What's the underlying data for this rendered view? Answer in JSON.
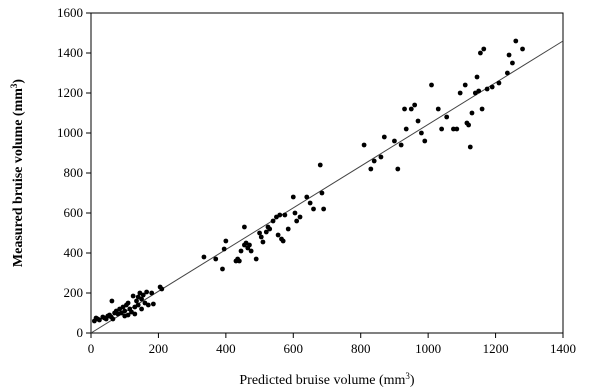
{
  "chart_data": {
    "type": "scatter",
    "title": "",
    "xlabel": "Predicted bruise volume (mm",
    "xlabel_sup": "3",
    "xlabel_tail": ")",
    "ylabel": "Measured bruise volume (mm",
    "ylabel_sup": "3",
    "ylabel_tail": ")",
    "xlim": [
      0,
      1400
    ],
    "ylim": [
      0,
      1600
    ],
    "xticks": [
      "0",
      "200",
      "400",
      "600",
      "800",
      "1000",
      "1200",
      "1400"
    ],
    "yticks": [
      "0",
      "200",
      "400",
      "600",
      "800",
      "1000",
      "1200",
      "1400",
      "1600"
    ],
    "grid": false,
    "legend": "none",
    "point_color": "#000000",
    "line_color": "#444444",
    "fit_line": {
      "x": [
        0,
        1400
      ],
      "y": [
        0,
        1460
      ]
    },
    "points": [
      [
        10,
        60
      ],
      [
        15,
        75
      ],
      [
        20,
        70
      ],
      [
        25,
        65
      ],
      [
        35,
        80
      ],
      [
        40,
        75
      ],
      [
        45,
        70
      ],
      [
        50,
        85
      ],
      [
        55,
        90
      ],
      [
        60,
        80
      ],
      [
        62,
        160
      ],
      [
        65,
        70
      ],
      [
        70,
        100
      ],
      [
        75,
        110
      ],
      [
        80,
        95
      ],
      [
        85,
        120
      ],
      [
        90,
        100
      ],
      [
        95,
        130
      ],
      [
        100,
        110
      ],
      [
        100,
        85
      ],
      [
        105,
        140
      ],
      [
        110,
        150
      ],
      [
        110,
        90
      ],
      [
        115,
        120
      ],
      [
        120,
        105
      ],
      [
        125,
        185
      ],
      [
        130,
        130
      ],
      [
        130,
        95
      ],
      [
        135,
        160
      ],
      [
        140,
        180
      ],
      [
        140,
        140
      ],
      [
        145,
        200
      ],
      [
        150,
        170
      ],
      [
        150,
        120
      ],
      [
        155,
        190
      ],
      [
        160,
        150
      ],
      [
        165,
        205
      ],
      [
        170,
        140
      ],
      [
        180,
        200
      ],
      [
        185,
        145
      ],
      [
        205,
        230
      ],
      [
        210,
        220
      ],
      [
        335,
        380
      ],
      [
        370,
        370
      ],
      [
        390,
        320
      ],
      [
        395,
        420
      ],
      [
        400,
        460
      ],
      [
        430,
        360
      ],
      [
        435,
        370
      ],
      [
        440,
        360
      ],
      [
        445,
        410
      ],
      [
        455,
        530
      ],
      [
        455,
        440
      ],
      [
        460,
        450
      ],
      [
        465,
        425
      ],
      [
        470,
        440
      ],
      [
        475,
        410
      ],
      [
        490,
        370
      ],
      [
        500,
        500
      ],
      [
        505,
        480
      ],
      [
        510,
        455
      ],
      [
        520,
        505
      ],
      [
        525,
        530
      ],
      [
        530,
        520
      ],
      [
        540,
        560
      ],
      [
        550,
        580
      ],
      [
        555,
        490
      ],
      [
        560,
        590
      ],
      [
        565,
        470
      ],
      [
        570,
        460
      ],
      [
        575,
        590
      ],
      [
        585,
        520
      ],
      [
        600,
        680
      ],
      [
        605,
        600
      ],
      [
        610,
        560
      ],
      [
        620,
        580
      ],
      [
        640,
        680
      ],
      [
        650,
        650
      ],
      [
        660,
        620
      ],
      [
        680,
        840
      ],
      [
        685,
        700
      ],
      [
        690,
        620
      ],
      [
        810,
        940
      ],
      [
        830,
        820
      ],
      [
        840,
        860
      ],
      [
        860,
        880
      ],
      [
        870,
        980
      ],
      [
        900,
        960
      ],
      [
        910,
        820
      ],
      [
        920,
        940
      ],
      [
        930,
        1120
      ],
      [
        935,
        1020
      ],
      [
        950,
        1120
      ],
      [
        960,
        1140
      ],
      [
        970,
        1060
      ],
      [
        980,
        1000
      ],
      [
        990,
        960
      ],
      [
        1010,
        1240
      ],
      [
        1030,
        1120
      ],
      [
        1040,
        1020
      ],
      [
        1055,
        1080
      ],
      [
        1075,
        1020
      ],
      [
        1085,
        1020
      ],
      [
        1095,
        1200
      ],
      [
        1110,
        1240
      ],
      [
        1115,
        1050
      ],
      [
        1120,
        1040
      ],
      [
        1125,
        930
      ],
      [
        1130,
        1100
      ],
      [
        1140,
        1200
      ],
      [
        1145,
        1280
      ],
      [
        1150,
        1210
      ],
      [
        1155,
        1400
      ],
      [
        1160,
        1120
      ],
      [
        1165,
        1420
      ],
      [
        1175,
        1220
      ],
      [
        1190,
        1230
      ],
      [
        1210,
        1250
      ],
      [
        1235,
        1300
      ],
      [
        1240,
        1390
      ],
      [
        1250,
        1350
      ],
      [
        1260,
        1460
      ],
      [
        1280,
        1420
      ]
    ]
  }
}
